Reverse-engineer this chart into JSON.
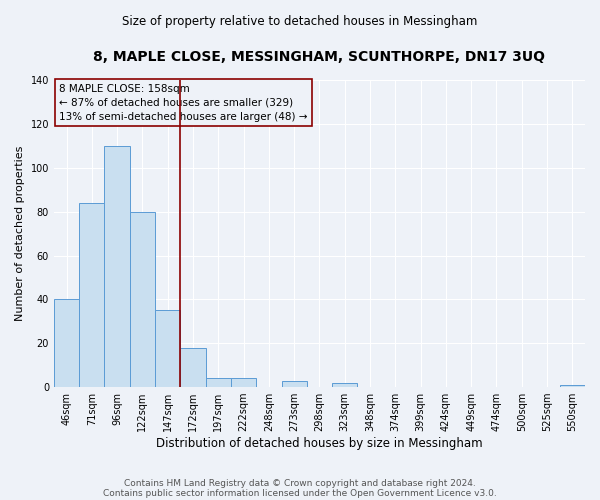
{
  "title": "8, MAPLE CLOSE, MESSINGHAM, SCUNTHORPE, DN17 3UQ",
  "subtitle": "Size of property relative to detached houses in Messingham",
  "xlabel": "Distribution of detached houses by size in Messingham",
  "ylabel": "Number of detached properties",
  "bar_labels": [
    "46sqm",
    "71sqm",
    "96sqm",
    "122sqm",
    "147sqm",
    "172sqm",
    "197sqm",
    "222sqm",
    "248sqm",
    "273sqm",
    "298sqm",
    "323sqm",
    "348sqm",
    "374sqm",
    "399sqm",
    "424sqm",
    "449sqm",
    "474sqm",
    "500sqm",
    "525sqm",
    "550sqm"
  ],
  "bar_values": [
    40,
    84,
    110,
    80,
    35,
    18,
    4,
    4,
    0,
    3,
    0,
    2,
    0,
    0,
    0,
    0,
    0,
    0,
    0,
    0,
    1
  ],
  "bar_color": "#c9dff0",
  "bar_edge_color": "#5b9bd5",
  "vertical_line_x": 4.5,
  "vertical_line_color": "#8b0000",
  "ylim": [
    0,
    140
  ],
  "yticks": [
    0,
    20,
    40,
    60,
    80,
    100,
    120,
    140
  ],
  "annotation_title": "8 MAPLE CLOSE: 158sqm",
  "annotation_line1": "← 87% of detached houses are smaller (329)",
  "annotation_line2": "13% of semi-detached houses are larger (48) →",
  "footer1": "Contains HM Land Registry data © Crown copyright and database right 2024.",
  "footer2": "Contains public sector information licensed under the Open Government Licence v3.0.",
  "background_color": "#eef2f8",
  "grid_color": "#ffffff",
  "title_fontsize": 10,
  "subtitle_fontsize": 8.5,
  "xlabel_fontsize": 8.5,
  "ylabel_fontsize": 8,
  "tick_fontsize": 7,
  "annotation_fontsize": 7.5,
  "footer_fontsize": 6.5
}
